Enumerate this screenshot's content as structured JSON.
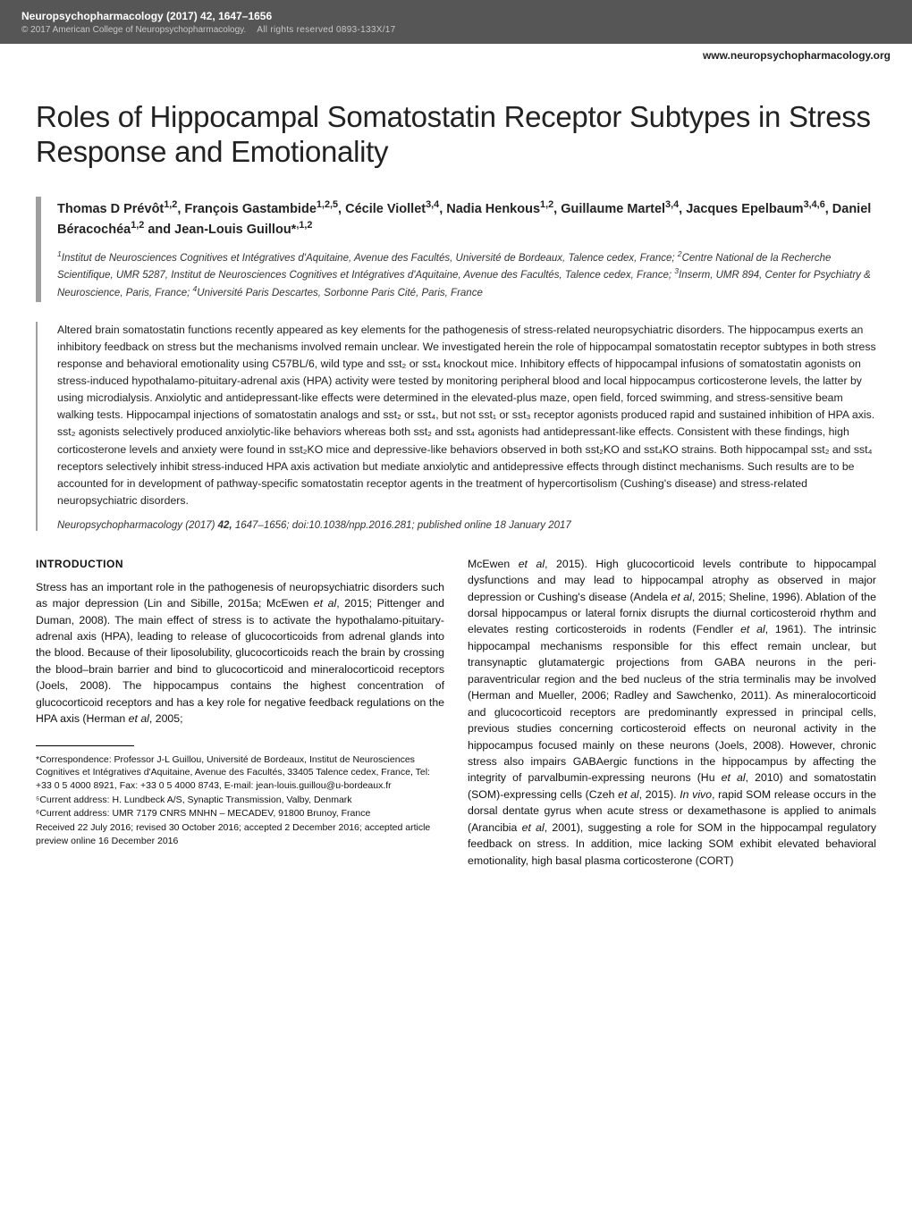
{
  "header": {
    "journal_title": "Neuropsychopharmacology (2017) 42, 1647–1656",
    "copyright": "© 2017 American College of Neuropsychopharmacology.",
    "rights": "All rights reserved 0893-133X/17",
    "url": "www.neuropsychopharmacology.org"
  },
  "title": "Roles of Hippocampal Somatostatin Receptor Subtypes in Stress Response and Emotionality",
  "authors_html": "Thomas D Prévôt<sup>1,2</sup>, François Gastambide<sup>1,2,5</sup>, Cécile Viollet<sup>3,4</sup>, Nadia Henkous<sup>1,2</sup>, Guillaume Martel<sup>3,4</sup>, Jacques Epelbaum<sup>3,4,6</sup>, Daniel Béracochéa<sup>1,2</sup> and Jean-Louis Guillou*<sup>,1,2</sup>",
  "affiliations_html": "<sup>1</sup>Institut de Neurosciences Cognitives et Intégratives d'Aquitaine, Avenue des Facultés, Université de Bordeaux, Talence cedex, France; <sup>2</sup>Centre National de la Recherche Scientifique, UMR 5287, Institut de Neurosciences Cognitives et Intégratives d'Aquitaine, Avenue des Facultés, Talence cedex, France; <sup>3</sup>Inserm, UMR 894, Center for Psychiatry & Neuroscience, Paris, France; <sup>4</sup>Université Paris Descartes, Sorbonne Paris Cité, Paris, France",
  "abstract": "Altered brain somatostatin functions recently appeared as key elements for the pathogenesis of stress-related neuropsychiatric disorders. The hippocampus exerts an inhibitory feedback on stress but the mechanisms involved remain unclear. We investigated herein the role of hippocampal somatostatin receptor subtypes in both stress response and behavioral emotionality using C57BL/6, wild type and sst₂ or sst₄ knockout mice. Inhibitory effects of hippocampal infusions of somatostatin agonists on stress-induced hypothalamo-pituitary-adrenal axis (HPA) activity were tested by monitoring peripheral blood and local hippocampus corticosterone levels, the latter by using microdialysis. Anxiolytic and antidepressant-like effects were determined in the elevated-plus maze, open field, forced swimming, and stress-sensitive beam walking tests. Hippocampal injections of somatostatin analogs and sst₂ or sst₄, but not sst₁ or sst₃ receptor agonists produced rapid and sustained inhibition of HPA axis. sst₂ agonists selectively produced anxiolytic-like behaviors whereas both sst₂ and sst₄ agonists had antidepressant-like effects. Consistent with these findings, high corticosterone levels and anxiety were found in sst₂KO mice and depressive-like behaviors observed in both sst₂KO and sst₄KO strains. Both hippocampal sst₂ and sst₄ receptors selectively inhibit stress-induced HPA axis activation but mediate anxiolytic and antidepressive effects through distinct mechanisms. Such results are to be accounted for in development of pathway-specific somatostatin receptor agents in the treatment of hypercortisolism (Cushing's disease) and stress-related neuropsychiatric disorders.",
  "citation_html": "<i>Neuropsychopharmacology</i> (2017) <b>42,</b> 1647–1656; doi:10.1038/npp.2016.281; published online 18 January 2017",
  "body": {
    "heading": "INTRODUCTION",
    "col1_html": "Stress has an important role in the pathogenesis of neuropsychiatric disorders such as major depression (Lin and Sibille, 2015a; McEwen <i>et al</i>, 2015; Pittenger and Duman, 2008). The main effect of stress is to activate the hypothalamo-pituitary-adrenal axis (HPA), leading to release of glucocorticoids from adrenal glands into the blood. Because of their liposolubility, glucocorticoids reach the brain by crossing the blood–brain barrier and bind to glucocorticoid and mineralocorticoid receptors (Joels, 2008). The hippocampus contains the highest concentration of glucocorticoid receptors and has a key role for negative feedback regulations on the HPA axis (Herman <i>et al</i>, 2005;",
    "col2_html": "McEwen <i>et al</i>, 2015). High glucocorticoid levels contribute to hippocampal dysfunctions and may lead to hippocampal atrophy as observed in major depression or Cushing's disease (Andela <i>et al</i>, 2015; Sheline, 1996). Ablation of the dorsal hippocampus or lateral fornix disrupts the diurnal corticosteroid rhythm and elevates resting corticosteroids in rodents (Fendler <i>et al</i>, 1961). The intrinsic hippocampal mechanisms responsible for this effect remain unclear, but transynaptic glutamatergic projections from GABA neurons in the peri-paraventricular region and the bed nucleus of the stria terminalis may be involved (Herman and Mueller, 2006; Radley and Sawchenko, 2011). As mineralocorticoid and glucocorticoid receptors are predominantly expressed in principal cells, previous studies concerning corticosteroid effects on neuronal activity in the hippocampus focused mainly on these neurons (Joels, 2008). However, chronic stress also impairs GABAergic functions in the hippocampus by affecting the integrity of parvalbumin-expressing neurons (Hu <i>et al</i>, 2010) and somatostatin (SOM)-expressing cells (Czeh <i>et al</i>, 2015). <i>In vivo</i>, rapid SOM release occurs in the dorsal dentate gyrus when acute stress or dexamethasone is applied to animals (Arancibia <i>et al</i>, 2001), suggesting a role for SOM in the hippocampal regulatory feedback on stress. In addition, mice lacking SOM exhibit elevated behavioral emotionality, high basal plasma corticosterone (CORT)"
  },
  "footnotes": {
    "correspondence": "*Correspondence: Professor J-L Guillou, Université de Bordeaux, Institut de Neurosciences Cognitives et Intégratives d'Aquitaine, Avenue des Facultés, 33405 Talence cedex, France, Tel: +33 0 5 4000 8921, Fax: +33 0 5 4000 8743, E-mail: jean-louis.guillou@u-bordeaux.fr",
    "addr5": "⁵Current address: H. Lundbeck A/S, Synaptic Transmission, Valby, Denmark",
    "addr6": "⁶Current address: UMR 7179 CNRS MNHN – MECADEV, 91800 Brunoy, France",
    "received": "Received 22 July 2016; revised 30 October 2016; accepted 2 December 2016; accepted article preview online 16 December 2016"
  },
  "colors": {
    "header_bg": "#565656",
    "accent_rule": "#2a6c8e",
    "sidebar_gray": "#9f9f9f"
  }
}
